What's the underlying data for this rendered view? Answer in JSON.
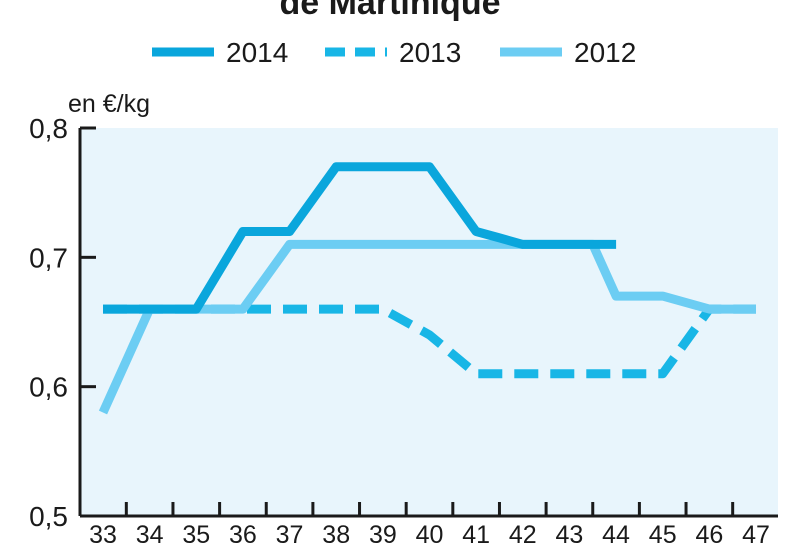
{
  "chart_data": {
    "type": "line",
    "title": "de Martinique",
    "ylabel": "en €/kg",
    "xlabel": "",
    "x": [
      33,
      34,
      35,
      36,
      37,
      38,
      39,
      40,
      41,
      42,
      43,
      44,
      45,
      46,
      47
    ],
    "x_tick_labels": [
      "33",
      "34",
      "35",
      "36",
      "37",
      "38",
      "39",
      "40",
      "41",
      "42",
      "43",
      "44",
      "45",
      "46",
      "47"
    ],
    "y_tick_labels": [
      "0,5",
      "0,6",
      "0,7",
      "0,8"
    ],
    "y_ticks": [
      0.5,
      0.6,
      0.7,
      0.8
    ],
    "ylim": [
      0.5,
      0.8
    ],
    "xlim": [
      33,
      47
    ],
    "grid": false,
    "legend_position": "top",
    "series": [
      {
        "name": "2014",
        "style": "solid",
        "color": "#0aa6dc",
        "x": [
          33,
          34,
          35,
          35.5,
          36,
          36.5,
          37,
          37.5,
          38,
          38.5,
          39,
          39.5,
          40,
          40.5,
          41,
          41.5,
          42,
          42.5,
          43,
          43.5,
          44
        ],
        "values": [
          0.66,
          0.66,
          0.66,
          0.69,
          0.72,
          0.72,
          0.72,
          0.745,
          0.77,
          0.77,
          0.77,
          0.77,
          0.77,
          0.745,
          0.72,
          0.715,
          0.71,
          0.71,
          0.71,
          0.71,
          0.71
        ]
      },
      {
        "name": "2013",
        "style": "dashed",
        "color": "#18b6e6",
        "x": [
          33,
          34,
          35,
          36,
          37,
          38,
          39,
          40,
          41,
          42,
          43,
          44,
          45,
          46,
          47
        ],
        "values": [
          0.66,
          0.66,
          0.66,
          0.66,
          0.66,
          0.66,
          0.66,
          0.64,
          0.61,
          0.61,
          0.61,
          0.61,
          0.61,
          0.66,
          0.66
        ]
      },
      {
        "name": "2012",
        "style": "solid",
        "color": "#6ccdf3",
        "x": [
          33,
          34,
          35,
          36,
          36.5,
          37,
          38,
          39,
          40,
          41,
          42,
          43,
          43.5,
          44,
          44.5,
          45,
          45.5,
          46,
          47
        ],
        "values": [
          0.58,
          0.66,
          0.66,
          0.66,
          0.685,
          0.71,
          0.71,
          0.71,
          0.71,
          0.71,
          0.71,
          0.71,
          0.71,
          0.67,
          0.67,
          0.67,
          0.665,
          0.66,
          0.66
        ]
      }
    ]
  },
  "colors": {
    "plot_background": "#e8f5fc",
    "axis": "#1a1a1a"
  }
}
